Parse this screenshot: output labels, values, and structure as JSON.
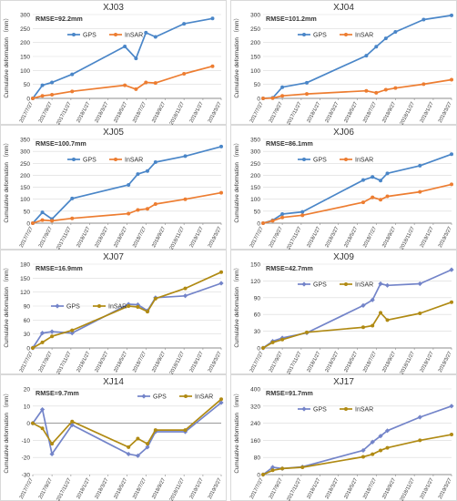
{
  "colors": {
    "gps_blue": "#4a86c8",
    "insar_orange": "#ed7d31",
    "gps_violet": "#7384c9",
    "insar_olive": "#b08a13",
    "grid": "#d9d9d9",
    "axis_text": "#595959"
  },
  "legend_labels": {
    "gps": "GPS",
    "insar": "InSAR"
  },
  "chart_data": [
    {
      "type": "line",
      "title": "XJ03",
      "annotation": "RMSE=92.2mm",
      "ylabel": "Cumulative deformation （mm）",
      "ylim": [
        0,
        300
      ],
      "yticks": [
        0,
        50,
        100,
        150,
        200,
        250,
        300
      ],
      "xticks": [
        "2017/7/27",
        "2017/9/27",
        "2017/11/27",
        "2018/1/27",
        "2018/3/27",
        "2018/5/27",
        "2018/7/27",
        "2018/9/27",
        "2018/11/27",
        "2019/1/27",
        "2019/3/27"
      ],
      "legend_position": "top-left",
      "series": [
        {
          "name": "GPS",
          "color_key": "gps_blue",
          "marker": "circle",
          "points": [
            [
              "2017/7/27",
              0
            ],
            [
              "2017/8/27",
              47
            ],
            [
              "2017/9/27",
              57
            ],
            [
              "2017/12/1",
              86
            ],
            [
              "2018/5/20",
              186
            ],
            [
              "2018/6/25",
              143
            ],
            [
              "2018/7/27",
              235
            ],
            [
              "2018/8/27",
              220
            ],
            [
              "2018/11/27",
              267
            ],
            [
              "2019/2/27",
              286
            ]
          ]
        },
        {
          "name": "InSAR",
          "color_key": "insar_orange",
          "marker": "circle",
          "points": [
            [
              "2017/7/27",
              0
            ],
            [
              "2017/8/27",
              9
            ],
            [
              "2017/9/27",
              13
            ],
            [
              "2017/12/1",
              25
            ],
            [
              "2018/5/20",
              47
            ],
            [
              "2018/6/25",
              33
            ],
            [
              "2018/7/27",
              57
            ],
            [
              "2018/8/27",
              55
            ],
            [
              "2018/11/27",
              88
            ],
            [
              "2019/2/27",
              115
            ]
          ]
        }
      ]
    },
    {
      "type": "line",
      "title": "XJ04",
      "annotation": "RMSE=101.2mm",
      "ylabel": "Cumulative deformation （mm）",
      "ylim": [
        0,
        300
      ],
      "yticks": [
        0,
        50,
        100,
        150,
        200,
        250,
        300
      ],
      "xticks": [
        "2017/7/27",
        "2017/9/27",
        "2017/11/27",
        "2018/1/27",
        "2018/3/27",
        "2018/5/27",
        "2018/7/27",
        "2018/9/27",
        "2018/11/27",
        "2019/1/27",
        "2019/3/27"
      ],
      "legend_position": "top-left",
      "series": [
        {
          "name": "GPS",
          "color_key": "gps_blue",
          "marker": "circle",
          "points": [
            [
              "2017/7/27",
              0
            ],
            [
              "2017/8/27",
              2
            ],
            [
              "2017/9/27",
              40
            ],
            [
              "2017/12/15",
              56
            ],
            [
              "2018/6/25",
              153
            ],
            [
              "2018/7/27",
              185
            ],
            [
              "2018/8/27",
              215
            ],
            [
              "2018/9/27",
              238
            ],
            [
              "2018/12/27",
              282
            ],
            [
              "2019/3/27",
              297
            ]
          ]
        },
        {
          "name": "InSAR",
          "color_key": "insar_orange",
          "marker": "circle",
          "points": [
            [
              "2017/7/27",
              0
            ],
            [
              "2017/8/27",
              1
            ],
            [
              "2017/9/27",
              9
            ],
            [
              "2017/12/15",
              16
            ],
            [
              "2018/6/25",
              27
            ],
            [
              "2018/7/27",
              20
            ],
            [
              "2018/8/27",
              31
            ],
            [
              "2018/9/27",
              37
            ],
            [
              "2018/12/27",
              51
            ],
            [
              "2019/3/27",
              67
            ]
          ]
        }
      ]
    },
    {
      "type": "line",
      "title": "XJ05",
      "annotation": "RMSE=100.7mm",
      "ylabel": "Cumulative deformation （mm）",
      "ylim": [
        0,
        350
      ],
      "yticks": [
        0,
        50,
        100,
        150,
        200,
        250,
        300,
        350
      ],
      "xticks": [
        "2017/7/27",
        "2017/9/27",
        "2017/11/27",
        "2018/1/27",
        "2018/3/27",
        "2018/5/27",
        "2018/7/27",
        "2018/9/27",
        "2018/11/27",
        "2019/1/27",
        "2019/3/27"
      ],
      "legend_position": "top-left",
      "series": [
        {
          "name": "GPS",
          "color_key": "gps_blue",
          "marker": "circle",
          "points": [
            [
              "2017/7/27",
              0
            ],
            [
              "2017/8/27",
              45
            ],
            [
              "2017/9/27",
              17
            ],
            [
              "2017/12/1",
              103
            ],
            [
              "2018/6/1",
              160
            ],
            [
              "2018/7/1",
              205
            ],
            [
              "2018/8/1",
              218
            ],
            [
              "2018/8/27",
              255
            ],
            [
              "2018/12/1",
              280
            ],
            [
              "2019/3/27",
              320
            ]
          ]
        },
        {
          "name": "InSAR",
          "color_key": "insar_orange",
          "marker": "circle",
          "points": [
            [
              "2017/7/27",
              0
            ],
            [
              "2017/8/27",
              13
            ],
            [
              "2017/9/27",
              10
            ],
            [
              "2017/12/1",
              20
            ],
            [
              "2018/6/1",
              40
            ],
            [
              "2018/7/1",
              55
            ],
            [
              "2018/8/1",
              60
            ],
            [
              "2018/8/27",
              80
            ],
            [
              "2018/12/1",
              100
            ],
            [
              "2019/3/27",
              127
            ]
          ]
        }
      ]
    },
    {
      "type": "line",
      "title": "XJ06",
      "annotation": "RMSE=86.1mm",
      "ylabel": "Cumulative deformation （mm）",
      "ylim": [
        0,
        350
      ],
      "yticks": [
        0,
        50,
        100,
        150,
        200,
        250,
        300,
        350
      ],
      "xticks": [
        "2017/7/27",
        "2017/9/27",
        "2017/11/27",
        "2018/1/27",
        "2018/3/27",
        "2018/5/27",
        "2018/7/27",
        "2018/9/27",
        "2018/11/27",
        "2019/1/27",
        "2019/3/27"
      ],
      "legend_position": "top-left",
      "series": [
        {
          "name": "GPS",
          "color_key": "gps_blue",
          "marker": "circle",
          "points": [
            [
              "2017/7/27",
              0
            ],
            [
              "2017/8/27",
              12
            ],
            [
              "2017/9/27",
              38
            ],
            [
              "2017/12/1",
              47
            ],
            [
              "2018/6/15",
              180
            ],
            [
              "2018/7/15",
              193
            ],
            [
              "2018/8/10",
              178
            ],
            [
              "2018/9/1",
              208
            ],
            [
              "2018/12/15",
              240
            ],
            [
              "2019/3/27",
              288
            ]
          ]
        },
        {
          "name": "InSAR",
          "color_key": "insar_orange",
          "marker": "circle",
          "points": [
            [
              "2017/7/27",
              0
            ],
            [
              "2017/8/27",
              10
            ],
            [
              "2017/9/27",
              24
            ],
            [
              "2017/12/1",
              33
            ],
            [
              "2018/6/15",
              87
            ],
            [
              "2018/7/15",
              108
            ],
            [
              "2018/8/10",
              98
            ],
            [
              "2018/9/1",
              112
            ],
            [
              "2018/12/15",
              131
            ],
            [
              "2019/3/27",
              162
            ]
          ]
        }
      ]
    },
    {
      "type": "line",
      "title": "XJ07",
      "annotation": "RMSE=16.9mm",
      "ylabel": "Cumulative deformation （mm）",
      "ylim": [
        0,
        180
      ],
      "yticks": [
        0,
        30,
        60,
        90,
        120,
        150,
        180
      ],
      "xticks": [
        "2017/7/27",
        "2017/9/27",
        "2017/11/27",
        "2018/1/27",
        "2018/3/27",
        "2018/5/27",
        "2018/7/27",
        "2018/9/27",
        "2018/11/27",
        "2019/1/27",
        "2019/3/27"
      ],
      "legend_position": "middle-left",
      "series": [
        {
          "name": "GPS",
          "color_key": "gps_violet",
          "marker": "diamond",
          "points": [
            [
              "2017/7/27",
              0
            ],
            [
              "2017/8/27",
              32
            ],
            [
              "2017/9/27",
              35
            ],
            [
              "2017/12/1",
              32
            ],
            [
              "2018/6/1",
              94
            ],
            [
              "2018/7/1",
              93
            ],
            [
              "2018/8/1",
              80
            ],
            [
              "2018/8/27",
              108
            ],
            [
              "2018/12/1",
              112
            ],
            [
              "2019/3/27",
              139
            ]
          ]
        },
        {
          "name": "InSAR",
          "color_key": "insar_olive",
          "marker": "circle",
          "points": [
            [
              "2017/7/27",
              0
            ],
            [
              "2017/8/27",
              12
            ],
            [
              "2017/9/27",
              25
            ],
            [
              "2017/12/1",
              38
            ],
            [
              "2018/6/1",
              90
            ],
            [
              "2018/7/1",
              88
            ],
            [
              "2018/8/1",
              78
            ],
            [
              "2018/8/27",
              106
            ],
            [
              "2018/12/1",
              128
            ],
            [
              "2019/3/27",
              163
            ]
          ]
        }
      ]
    },
    {
      "type": "line",
      "title": "XJ09",
      "annotation": "RMSE=42.7mm",
      "ylabel": "Cumulative deformation （mm）",
      "ylim": [
        0,
        150
      ],
      "yticks": [
        0,
        30,
        60,
        90,
        120,
        150
      ],
      "xticks": [
        "2017/7/27",
        "2017/9/27",
        "2017/11/27",
        "2018/1/27",
        "2018/3/27",
        "2018/5/27",
        "2018/7/27",
        "2018/9/27",
        "2018/11/27",
        "2019/1/27",
        "2019/3/27"
      ],
      "legend_position": "top-left",
      "series": [
        {
          "name": "GPS",
          "color_key": "gps_violet",
          "marker": "diamond",
          "points": [
            [
              "2017/7/27",
              0
            ],
            [
              "2017/8/27",
              12
            ],
            [
              "2017/9/27",
              18
            ],
            [
              "2017/12/15",
              27
            ],
            [
              "2018/6/15",
              76
            ],
            [
              "2018/7/15",
              86
            ],
            [
              "2018/8/10",
              115
            ],
            [
              "2018/9/1",
              112
            ],
            [
              "2018/12/15",
              115
            ],
            [
              "2019/3/27",
              140
            ]
          ]
        },
        {
          "name": "InSAR",
          "color_key": "insar_olive",
          "marker": "circle",
          "points": [
            [
              "2017/7/27",
              0
            ],
            [
              "2017/8/27",
              10
            ],
            [
              "2017/9/27",
              15
            ],
            [
              "2017/12/15",
              28
            ],
            [
              "2018/6/15",
              37
            ],
            [
              "2018/7/15",
              40
            ],
            [
              "2018/8/10",
              63
            ],
            [
              "2018/9/1",
              50
            ],
            [
              "2018/12/15",
              62
            ],
            [
              "2019/3/27",
              82
            ]
          ]
        }
      ]
    },
    {
      "type": "line",
      "title": "XJ14",
      "annotation": "RMSE=9.7mm",
      "ylabel": "Cumulative deformation （mm）",
      "ylim": [
        -30,
        20
      ],
      "yticks": [
        -30,
        -20,
        -10,
        0,
        10,
        20
      ],
      "xticks": [
        "2017/7/27",
        "2017/9/27",
        "2017/11/27",
        "2018/1/27",
        "2018/3/27",
        "2018/5/27",
        "2018/7/27",
        "2018/9/27",
        "2018/11/27",
        "2019/1/27",
        "2019/3/27"
      ],
      "legend_position": "top-right",
      "series": [
        {
          "name": "GPS",
          "color_key": "gps_violet",
          "marker": "diamond",
          "points": [
            [
              "2017/7/27",
              0
            ],
            [
              "2017/8/27",
              8
            ],
            [
              "2017/9/27",
              -18
            ],
            [
              "2017/12/1",
              -1
            ],
            [
              "2018/6/1",
              -18
            ],
            [
              "2018/7/1",
              -19
            ],
            [
              "2018/8/1",
              -14
            ],
            [
              "2018/8/27",
              -5
            ],
            [
              "2018/12/1",
              -5
            ],
            [
              "2019/3/27",
              12
            ]
          ]
        },
        {
          "name": "InSAR",
          "color_key": "insar_olive",
          "marker": "circle",
          "points": [
            [
              "2017/7/27",
              0
            ],
            [
              "2017/8/27",
              -3
            ],
            [
              "2017/9/27",
              -12
            ],
            [
              "2017/12/1",
              1
            ],
            [
              "2018/6/1",
              -14
            ],
            [
              "2018/7/1",
              -9
            ],
            [
              "2018/8/1",
              -12
            ],
            [
              "2018/8/27",
              -4
            ],
            [
              "2018/12/1",
              -4
            ],
            [
              "2019/3/27",
              14
            ]
          ]
        }
      ]
    },
    {
      "type": "line",
      "title": "XJ17",
      "annotation": "RMSE=91.7mm",
      "ylabel": "Cumulative deformation （mm）",
      "ylim": [
        0,
        400
      ],
      "yticks": [
        0,
        80,
        160,
        240,
        320,
        400
      ],
      "xticks": [
        "2017/7/27",
        "2017/9/27",
        "2017/11/27",
        "2018/1/27",
        "2018/3/27",
        "2018/5/27",
        "2018/7/27",
        "2018/9/27",
        "2018/11/27",
        "2019/1/27",
        "2019/3/27"
      ],
      "legend_position": "top-left",
      "series": [
        {
          "name": "GPS",
          "color_key": "gps_violet",
          "marker": "diamond",
          "points": [
            [
              "2017/7/27",
              0
            ],
            [
              "2017/8/27",
              34
            ],
            [
              "2017/9/27",
              28
            ],
            [
              "2017/12/1",
              36
            ],
            [
              "2018/6/15",
              113
            ],
            [
              "2018/7/15",
              152
            ],
            [
              "2018/8/10",
              180
            ],
            [
              "2018/9/1",
              205
            ],
            [
              "2018/12/15",
              268
            ],
            [
              "2019/3/27",
              320
            ]
          ]
        },
        {
          "name": "InSAR",
          "color_key": "insar_olive",
          "marker": "circle",
          "points": [
            [
              "2017/7/27",
              0
            ],
            [
              "2017/8/27",
              20
            ],
            [
              "2017/9/27",
              28
            ],
            [
              "2017/12/1",
              34
            ],
            [
              "2018/6/15",
              83
            ],
            [
              "2018/7/15",
              95
            ],
            [
              "2018/8/10",
              113
            ],
            [
              "2018/9/1",
              125
            ],
            [
              "2018/12/15",
              160
            ],
            [
              "2019/3/27",
              187
            ]
          ]
        }
      ]
    }
  ]
}
